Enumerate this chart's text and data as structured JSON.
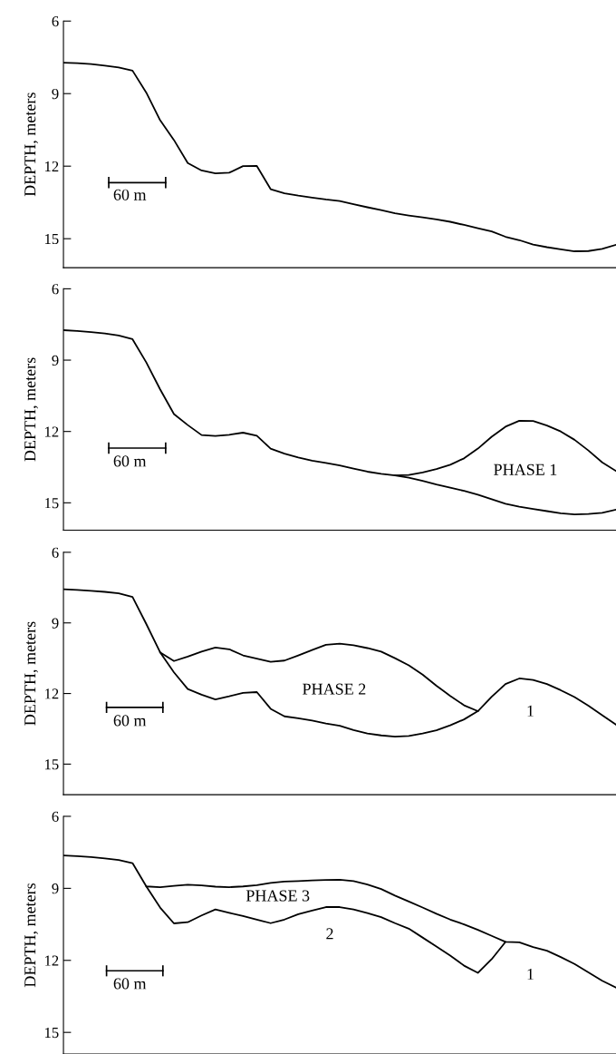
{
  "chart_data": [
    {
      "type": "line",
      "ylabel": "DEPTH, meters",
      "ylim": [
        16.2,
        6
      ],
      "yticks": [
        6,
        9,
        12,
        15
      ],
      "tick_labels": "y",
      "annotations": [
        "60 m"
      ],
      "categories": [
        null,
        null,
        null,
        null,
        null,
        null,
        null,
        null,
        null,
        null,
        null,
        null,
        null,
        null,
        null,
        null,
        null,
        null,
        null,
        null,
        null,
        null,
        null,
        null,
        null,
        null,
        null,
        null,
        null,
        null,
        null,
        null,
        null,
        null,
        null,
        null,
        null,
        null,
        null,
        null,
        null
      ],
      "series": [
        {
          "color": "#000000",
          "values": [
            7.72,
            7.74,
            7.78,
            7.84,
            7.92,
            8.05,
            8.96,
            10.1,
            10.92,
            11.87,
            12.18,
            12.3,
            12.27,
            12.0,
            11.99,
            12.95,
            13.12,
            13.22,
            13.3,
            13.38,
            13.44,
            13.57,
            13.7,
            13.82,
            13.95,
            14.04,
            14.12,
            14.2,
            14.3,
            14.43,
            14.57,
            14.7,
            14.92,
            15.06,
            15.24,
            15.35,
            15.44,
            15.52,
            15.51,
            15.42,
            15.25
          ]
        }
      ]
    },
    {
      "type": "line",
      "ylabel": "DEPTH, meters",
      "ylim": [
        16.15,
        6
      ],
      "yticks": [
        6,
        9,
        12,
        15
      ],
      "tick_labels": "y",
      "annotations": [
        "60 m",
        "PHASE 1"
      ],
      "categories": [
        null,
        null,
        null,
        null,
        null,
        null,
        null,
        null,
        null,
        null,
        null,
        null,
        null,
        null,
        null,
        null,
        null,
        null,
        null,
        null,
        null,
        null,
        null,
        null,
        null,
        null,
        null,
        null,
        null,
        null,
        null,
        null,
        null,
        null,
        null,
        null,
        null,
        null,
        null,
        null,
        null
      ],
      "series": [
        {
          "color": "#000000",
          "values": [
            7.74,
            7.77,
            7.82,
            7.88,
            7.96,
            8.12,
            9.1,
            10.23,
            11.27,
            11.73,
            12.15,
            12.19,
            12.14,
            12.05,
            12.18,
            12.72,
            12.93,
            13.09,
            13.23,
            13.32,
            13.43,
            13.56,
            13.69,
            13.78,
            13.85,
            13.94,
            14.08,
            14.23,
            14.36,
            14.5,
            14.66,
            14.85,
            15.04,
            15.16,
            15.26,
            15.35,
            15.44,
            15.49,
            15.47,
            15.42,
            15.29
          ]
        },
        {
          "color": "#000000",
          "values": [
            null,
            null,
            null,
            null,
            null,
            null,
            null,
            null,
            null,
            null,
            null,
            null,
            null,
            null,
            null,
            null,
            null,
            null,
            null,
            null,
            null,
            null,
            null,
            null,
            13.85,
            13.83,
            13.72,
            13.58,
            13.4,
            13.13,
            12.72,
            12.22,
            11.8,
            11.55,
            11.56,
            11.75,
            12.0,
            12.35,
            12.8,
            13.3,
            13.66
          ]
        }
      ]
    },
    {
      "type": "line",
      "ylabel": "DEPTH, meters",
      "ylim": [
        16.3,
        6
      ],
      "yticks": [
        6,
        9,
        12,
        15
      ],
      "tick_labels": "y",
      "annotations": [
        "60 m",
        "PHASE 2",
        "1"
      ],
      "categories": [
        null,
        null,
        null,
        null,
        null,
        null,
        null,
        null,
        null,
        null,
        null,
        null,
        null,
        null,
        null,
        null,
        null,
        null,
        null,
        null,
        null,
        null,
        null,
        null,
        null,
        null,
        null,
        null,
        null,
        null,
        null,
        null,
        null,
        null,
        null,
        null,
        null,
        null,
        null,
        null,
        null
      ],
      "series": [
        {
          "color": "#000000",
          "values": [
            7.57,
            7.6,
            7.64,
            7.68,
            7.74,
            7.9,
            9.05,
            10.25,
            10.62,
            10.43,
            10.22,
            10.05,
            10.12,
            10.38,
            10.52,
            10.65,
            10.6,
            10.38,
            10.15,
            9.93,
            9.88,
            9.95,
            10.07,
            10.22,
            10.5,
            10.8,
            11.2,
            11.67,
            12.1,
            12.5,
            12.75,
            12.14,
            11.6,
            11.36,
            11.42,
            11.6,
            11.86,
            12.15,
            12.52,
            12.92,
            13.32
          ]
        },
        {
          "color": "#000000",
          "values": [
            null,
            null,
            null,
            null,
            null,
            null,
            null,
            10.25,
            11.1,
            11.81,
            12.05,
            12.25,
            12.12,
            11.97,
            11.94,
            12.65,
            12.97,
            13.05,
            13.15,
            13.27,
            13.37,
            13.55,
            13.7,
            13.78,
            13.83,
            13.8,
            13.7,
            13.56,
            13.35,
            13.1,
            12.75,
            null,
            null,
            null,
            null,
            null,
            null,
            null,
            null,
            null,
            null
          ]
        }
      ]
    },
    {
      "type": "line",
      "ylabel": "DEPTH, meters",
      "ylim": [
        15.9,
        6
      ],
      "yticks": [
        6,
        9,
        12,
        15
      ],
      "tick_labels": "y",
      "annotations": [
        "60 m",
        "PHASE 3",
        "2",
        "1"
      ],
      "categories": [
        null,
        null,
        null,
        null,
        null,
        null,
        null,
        null,
        null,
        null,
        null,
        null,
        null,
        null,
        null,
        null,
        null,
        null,
        null,
        null,
        null,
        null,
        null,
        null,
        null,
        null,
        null,
        null,
        null,
        null,
        null,
        null,
        null,
        null,
        null,
        null,
        null,
        null,
        null,
        null,
        null
      ],
      "series": [
        {
          "color": "#000000",
          "values": [
            7.63,
            7.66,
            7.7,
            7.75,
            7.82,
            7.95,
            8.92,
            8.95,
            8.9,
            8.85,
            8.88,
            8.93,
            8.95,
            8.92,
            8.87,
            8.77,
            8.72,
            8.7,
            8.67,
            8.65,
            8.64,
            8.7,
            8.84,
            9.03,
            9.3,
            9.55,
            9.8,
            10.06,
            10.3,
            10.5,
            10.73,
            10.98,
            11.23,
            11.25,
            11.45,
            11.6,
            11.86,
            12.15,
            12.5,
            12.85,
            13.13
          ]
        },
        {
          "color": "#000000",
          "values": [
            null,
            null,
            null,
            null,
            null,
            null,
            8.92,
            9.8,
            10.46,
            10.41,
            10.13,
            9.88,
            10.02,
            10.15,
            10.3,
            10.45,
            10.3,
            10.08,
            9.93,
            9.78,
            9.78,
            9.88,
            10.03,
            10.2,
            10.45,
            10.68,
            11.05,
            11.42,
            11.8,
            12.22,
            12.52,
            11.95,
            11.23,
            null,
            null,
            null,
            null,
            null,
            null,
            null,
            null
          ]
        }
      ]
    }
  ]
}
